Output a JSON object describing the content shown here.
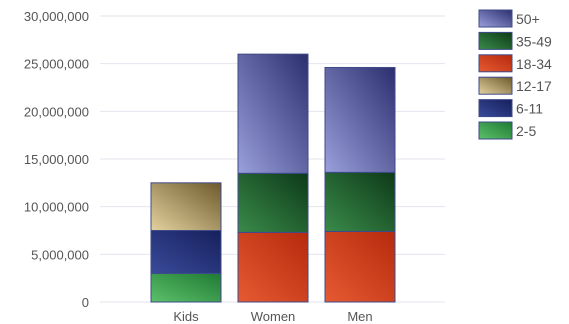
{
  "chart_data": {
    "type": "bar",
    "stacked": true,
    "categories": [
      "Kids",
      "Women",
      "Men"
    ],
    "ylim": [
      0,
      30000000
    ],
    "yticks": [
      0,
      5000000,
      10000000,
      15000000,
      20000000,
      25000000,
      30000000
    ],
    "ytick_labels": [
      "0",
      "5,000,000",
      "10,000,000",
      "15,000,000",
      "20,000,000",
      "25,000,000",
      "30,000,000"
    ],
    "grid": true,
    "legend_position": "top-right",
    "legend_order": [
      "50+",
      "35-49",
      "18-34",
      "12-17",
      "6-11",
      "2-5"
    ],
    "series": [
      {
        "name": "2-5",
        "values": [
          3000000,
          0,
          0
        ],
        "color_light": "#5cc06a",
        "color_dark": "#1f7a34"
      },
      {
        "name": "6-11",
        "values": [
          4500000,
          0,
          0
        ],
        "color_light": "#3a4a9a",
        "color_dark": "#15205c"
      },
      {
        "name": "12-17",
        "values": [
          5000000,
          0,
          0
        ],
        "color_light": "#e3d2a0",
        "color_dark": "#6e5a2c"
      },
      {
        "name": "18-34",
        "values": [
          0,
          7300000,
          7400000
        ],
        "color_light": "#e65a32",
        "color_dark": "#b52a0c"
      },
      {
        "name": "35-49",
        "values": [
          0,
          6200000,
          6200000
        ],
        "color_light": "#3a8a4a",
        "color_dark": "#0d3a18"
      },
      {
        "name": "50+",
        "values": [
          0,
          12500000,
          11000000
        ],
        "color_light": "#9aa0dc",
        "color_dark": "#2c2f6e"
      }
    ]
  }
}
